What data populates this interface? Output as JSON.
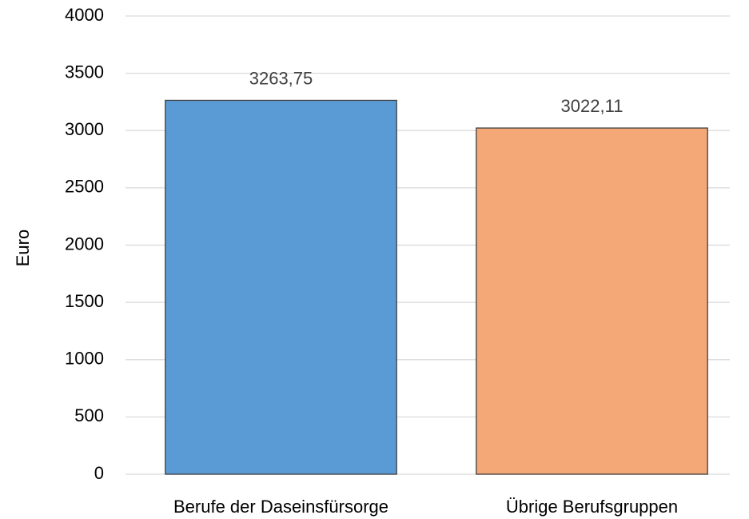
{
  "chart_data": {
    "type": "bar",
    "y_label": "Euro",
    "categories": [
      "Berufe der Daseinsfürsorge",
      "Übrige Berufsgruppen"
    ],
    "values": [
      3263.75,
      3022.11
    ],
    "value_labels": [
      "3263,75",
      "3022,11"
    ],
    "colors": [
      "#5b9bd5",
      "#f4a878"
    ],
    "ylim": [
      0,
      4000
    ],
    "yticks": [
      0,
      500,
      1000,
      1500,
      2000,
      2500,
      3000,
      3500,
      4000
    ],
    "grid": true
  }
}
